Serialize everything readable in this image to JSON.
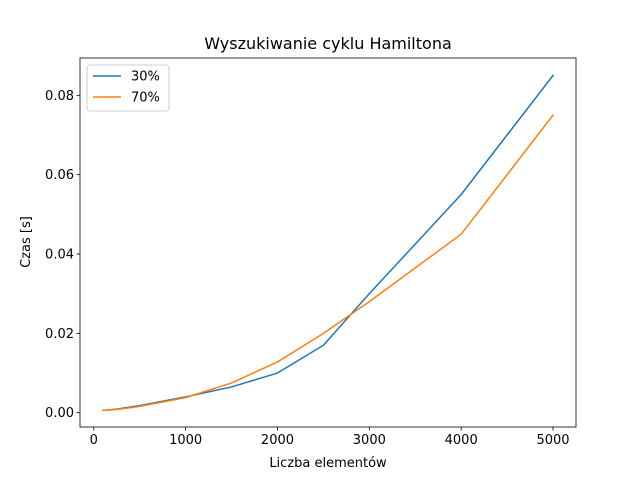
{
  "chart_data": {
    "type": "line",
    "title": "Wyszukiwanie cyklu Hamiltona",
    "xlabel": "Liczba elementów",
    "ylabel": "Czas [s]",
    "xlim": [
      -150,
      5250
    ],
    "ylim": [
      -0.0036,
      0.0894
    ],
    "xticks": [
      0,
      1000,
      2000,
      3000,
      4000,
      5000
    ],
    "xtick_labels": [
      "0",
      "1000",
      "2000",
      "3000",
      "4000",
      "5000"
    ],
    "yticks": [
      0.0,
      0.02,
      0.04,
      0.06,
      0.08
    ],
    "ytick_labels": [
      "0.00",
      "0.02",
      "0.04",
      "0.06",
      "0.08"
    ],
    "grid": false,
    "legend_position": "top-left",
    "x": [
      100,
      250,
      500,
      1000,
      1500,
      2000,
      2500,
      3000,
      4000,
      5000
    ],
    "series": [
      {
        "name": "30%",
        "color": "#1f77b4",
        "values": [
          0.0006,
          0.0009,
          0.0018,
          0.004,
          0.0065,
          0.01,
          0.017,
          0.03,
          0.055,
          0.085
        ]
      },
      {
        "name": "70%",
        "color": "#ff7f0e",
        "values": [
          0.0006,
          0.0008,
          0.0016,
          0.0038,
          0.0075,
          0.0128,
          0.02,
          0.028,
          0.045,
          0.075
        ]
      }
    ]
  }
}
